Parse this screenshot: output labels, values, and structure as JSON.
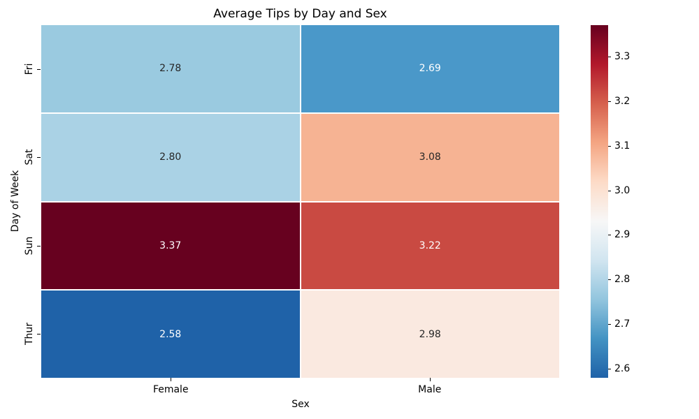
{
  "chart_data": {
    "type": "heatmap",
    "title": "Average Tips by Day and Sex",
    "xlabel": "Sex",
    "ylabel": "Day of Week",
    "columns": [
      "Female",
      "Male"
    ],
    "rows": [
      "Fri",
      "Sat",
      "Sun",
      "Thur"
    ],
    "values": [
      [
        2.78,
        2.69
      ],
      [
        2.8,
        3.08
      ],
      [
        3.37,
        3.22
      ],
      [
        2.58,
        2.98
      ]
    ],
    "cell_labels": [
      [
        "2.78",
        "2.69"
      ],
      [
        "2.80",
        "3.08"
      ],
      [
        "3.37",
        "3.22"
      ],
      [
        "2.58",
        "2.98"
      ]
    ],
    "cell_colors": [
      [
        "#9acae0",
        "#4a98c9"
      ],
      [
        "#aad2e5",
        "#f6b393"
      ],
      [
        "#67011f",
        "#c94a42"
      ],
      [
        "#1f62a8",
        "#fae9e0"
      ]
    ],
    "cell_text_colors": [
      [
        "#262626",
        "#ffffff"
      ],
      [
        "#262626",
        "#262626"
      ],
      [
        "#ffffff",
        "#ffffff"
      ],
      [
        "#ffffff",
        "#262626"
      ]
    ],
    "colormap": "RdBu_r",
    "grid_line_color": "#ffffff",
    "colorbar": {
      "vmin": 2.58,
      "vmax": 3.37,
      "ticks": [
        "2.6",
        "2.7",
        "2.8",
        "2.9",
        "3.0",
        "3.1",
        "3.2",
        "3.3"
      ],
      "gradient": [
        {
          "pos": 0.0,
          "color": "#1f62a8"
        },
        {
          "pos": 0.111,
          "color": "#4393c3"
        },
        {
          "pos": 0.222,
          "color": "#92c5de"
        },
        {
          "pos": 0.333,
          "color": "#d1e5f0"
        },
        {
          "pos": 0.444,
          "color": "#f7f7f7"
        },
        {
          "pos": 0.556,
          "color": "#fddbc7"
        },
        {
          "pos": 0.667,
          "color": "#f4a582"
        },
        {
          "pos": 0.778,
          "color": "#d6604d"
        },
        {
          "pos": 0.889,
          "color": "#b2182b"
        },
        {
          "pos": 1.0,
          "color": "#67001f"
        }
      ]
    }
  }
}
